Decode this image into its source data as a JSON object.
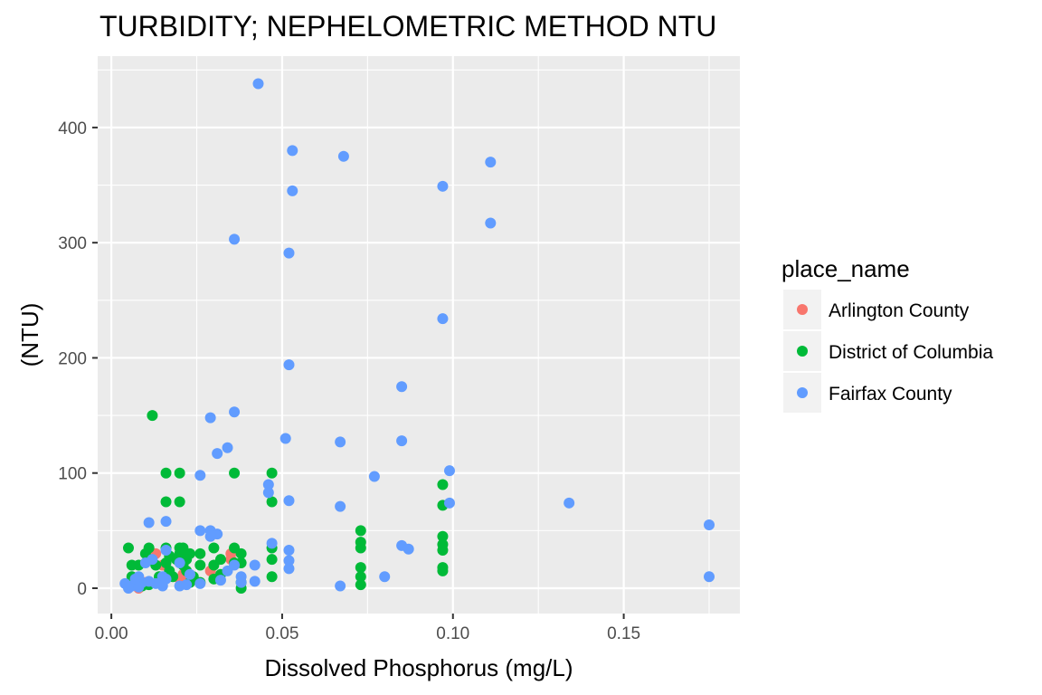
{
  "chart_data": {
    "type": "scatter",
    "title": "TURBIDITY; NEPHELOMETRIC METHOD NTU",
    "xlabel": "Dissolved Phosphorus (mg/L)",
    "ylabel": "(NTU)",
    "xlim": [
      -0.004,
      0.184
    ],
    "ylim": [
      -22,
      462
    ],
    "x_ticks": [
      0.0,
      0.05,
      0.1,
      0.15
    ],
    "x_tick_labels": [
      "0.00",
      "0.05",
      "0.10",
      "0.15"
    ],
    "y_ticks": [
      0,
      100,
      200,
      300,
      400
    ],
    "y_tick_labels": [
      "0",
      "100",
      "200",
      "300",
      "400"
    ],
    "grid": true,
    "legend": {
      "title": "place_name",
      "placement": "right"
    },
    "series": [
      {
        "name": "Arlington County",
        "color": "#F8766D",
        "points": [
          [
            0.008,
            0
          ],
          [
            0.013,
            30
          ],
          [
            0.015,
            20
          ],
          [
            0.02,
            8
          ],
          [
            0.021,
            12
          ],
          [
            0.029,
            15
          ],
          [
            0.035,
            30
          ],
          [
            0.035,
            25
          ],
          [
            0.01,
            5
          ]
        ]
      },
      {
        "name": "District of Columbia",
        "color": "#00BA38",
        "points": [
          [
            0.005,
            35
          ],
          [
            0.006,
            20
          ],
          [
            0.006,
            10
          ],
          [
            0.007,
            5
          ],
          [
            0.008,
            20
          ],
          [
            0.009,
            2
          ],
          [
            0.01,
            30
          ],
          [
            0.011,
            35
          ],
          [
            0.011,
            3
          ],
          [
            0.012,
            150
          ],
          [
            0.013,
            20
          ],
          [
            0.014,
            10
          ],
          [
            0.016,
            100
          ],
          [
            0.016,
            75
          ],
          [
            0.016,
            35
          ],
          [
            0.016,
            22
          ],
          [
            0.017,
            15
          ],
          [
            0.017,
            28
          ],
          [
            0.018,
            10
          ],
          [
            0.019,
            25
          ],
          [
            0.02,
            100
          ],
          [
            0.02,
            75
          ],
          [
            0.02,
            35
          ],
          [
            0.02,
            30
          ],
          [
            0.021,
            20
          ],
          [
            0.021,
            35
          ],
          [
            0.022,
            25
          ],
          [
            0.022,
            15
          ],
          [
            0.023,
            30
          ],
          [
            0.023,
            5
          ],
          [
            0.024,
            10
          ],
          [
            0.026,
            30
          ],
          [
            0.026,
            20
          ],
          [
            0.026,
            5
          ],
          [
            0.03,
            35
          ],
          [
            0.03,
            20
          ],
          [
            0.03,
            8
          ],
          [
            0.032,
            25
          ],
          [
            0.032,
            12
          ],
          [
            0.036,
            100
          ],
          [
            0.036,
            35
          ],
          [
            0.036,
            22
          ],
          [
            0.038,
            30
          ],
          [
            0.038,
            22
          ],
          [
            0.038,
            5
          ],
          [
            0.038,
            0
          ],
          [
            0.047,
            100
          ],
          [
            0.047,
            75
          ],
          [
            0.047,
            35
          ],
          [
            0.047,
            25
          ],
          [
            0.047,
            10
          ],
          [
            0.073,
            50
          ],
          [
            0.073,
            40
          ],
          [
            0.073,
            35
          ],
          [
            0.073,
            18
          ],
          [
            0.073,
            10
          ],
          [
            0.073,
            3
          ],
          [
            0.097,
            90
          ],
          [
            0.097,
            72
          ],
          [
            0.097,
            45
          ],
          [
            0.097,
            38
          ],
          [
            0.097,
            33
          ],
          [
            0.097,
            18
          ],
          [
            0.097,
            15
          ]
        ]
      },
      {
        "name": "Fairfax County",
        "color": "#619CFF",
        "points": [
          [
            0.043,
            438
          ],
          [
            0.053,
            380
          ],
          [
            0.068,
            375
          ],
          [
            0.111,
            370
          ],
          [
            0.097,
            349
          ],
          [
            0.053,
            345
          ],
          [
            0.111,
            317
          ],
          [
            0.036,
            303
          ],
          [
            0.052,
            291
          ],
          [
            0.097,
            234
          ],
          [
            0.052,
            194
          ],
          [
            0.085,
            175
          ],
          [
            0.036,
            153
          ],
          [
            0.029,
            148
          ],
          [
            0.051,
            130
          ],
          [
            0.067,
            127
          ],
          [
            0.085,
            128
          ],
          [
            0.034,
            122
          ],
          [
            0.031,
            117
          ],
          [
            0.026,
            98
          ],
          [
            0.077,
            97
          ],
          [
            0.099,
            102
          ],
          [
            0.099,
            74
          ],
          [
            0.134,
            74
          ],
          [
            0.046,
            90
          ],
          [
            0.046,
            83
          ],
          [
            0.052,
            76
          ],
          [
            0.067,
            71
          ],
          [
            0.011,
            57
          ],
          [
            0.016,
            58
          ],
          [
            0.175,
            55
          ],
          [
            0.026,
            50
          ],
          [
            0.029,
            50
          ],
          [
            0.031,
            47
          ],
          [
            0.029,
            45
          ],
          [
            0.047,
            39
          ],
          [
            0.085,
            37
          ],
          [
            0.087,
            34
          ],
          [
            0.016,
            33
          ],
          [
            0.052,
            33
          ],
          [
            0.052,
            24
          ],
          [
            0.02,
            22
          ],
          [
            0.012,
            25
          ],
          [
            0.01,
            22
          ],
          [
            0.036,
            20
          ],
          [
            0.042,
            20
          ],
          [
            0.052,
            17
          ],
          [
            0.034,
            15
          ],
          [
            0.023,
            12
          ],
          [
            0.038,
            10
          ],
          [
            0.08,
            10
          ],
          [
            0.175,
            10
          ],
          [
            0.008,
            10
          ],
          [
            0.015,
            10
          ],
          [
            0.016,
            8
          ],
          [
            0.032,
            7
          ],
          [
            0.042,
            6
          ],
          [
            0.038,
            5
          ],
          [
            0.026,
            4
          ],
          [
            0.013,
            4
          ],
          [
            0.009,
            5
          ],
          [
            0.004,
            4
          ],
          [
            0.02,
            2
          ],
          [
            0.022,
            3
          ],
          [
            0.015,
            2
          ],
          [
            0.067,
            2
          ],
          [
            0.005,
            0
          ],
          [
            0.006,
            2
          ],
          [
            0.008,
            1
          ],
          [
            0.011,
            6
          ],
          [
            0.007,
            8
          ]
        ]
      }
    ]
  }
}
